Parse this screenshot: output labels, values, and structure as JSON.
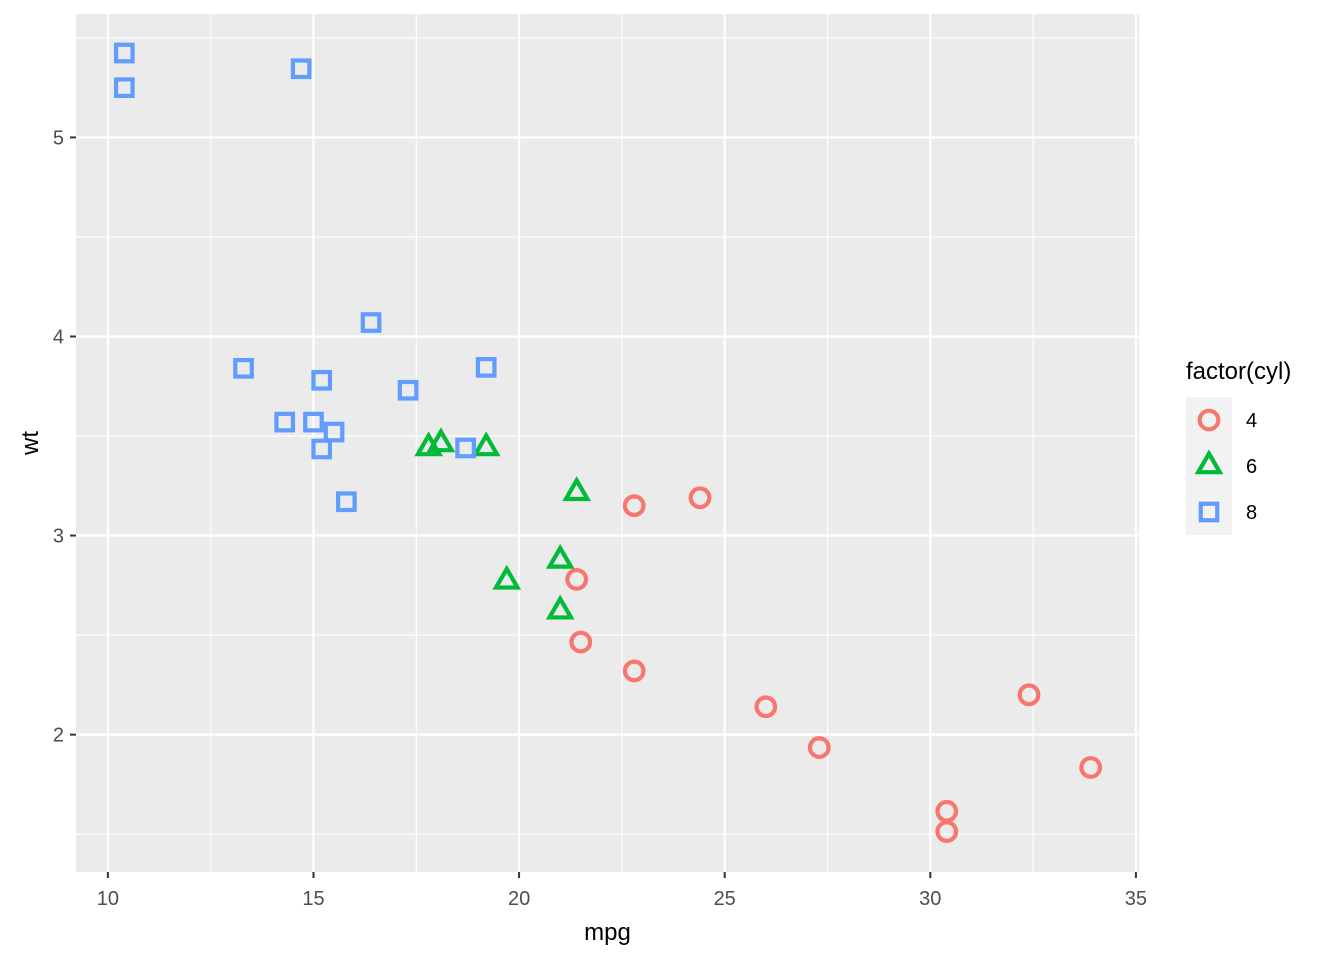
{
  "chart_data": {
    "type": "scatter",
    "title": "",
    "xlabel": "mpg",
    "ylabel": "wt",
    "xlim": [
      9.225,
      35.075
    ],
    "ylim": [
      1.31,
      5.62
    ],
    "x_ticks": [
      10,
      15,
      20,
      25,
      30,
      35
    ],
    "y_ticks": [
      2,
      3,
      4,
      5
    ],
    "x_tick_labels": [
      "10",
      "15",
      "20",
      "25",
      "30",
      "35"
    ],
    "y_tick_labels": [
      "2",
      "3",
      "4",
      "5"
    ],
    "grid": true,
    "legend": {
      "title": "factor(cyl)",
      "position": "right"
    },
    "series": [
      {
        "name": "4",
        "shape": "circle",
        "color": "#F8766D",
        "points": [
          {
            "x": 22.8,
            "y": 2.32
          },
          {
            "x": 24.4,
            "y": 3.19
          },
          {
            "x": 22.8,
            "y": 3.15
          },
          {
            "x": 32.4,
            "y": 2.2
          },
          {
            "x": 30.4,
            "y": 1.615
          },
          {
            "x": 33.9,
            "y": 1.835
          },
          {
            "x": 21.5,
            "y": 2.465
          },
          {
            "x": 27.3,
            "y": 1.935
          },
          {
            "x": 26.0,
            "y": 2.14
          },
          {
            "x": 30.4,
            "y": 1.513
          },
          {
            "x": 21.4,
            "y": 2.78
          }
        ]
      },
      {
        "name": "6",
        "shape": "triangle",
        "color": "#00BA38",
        "points": [
          {
            "x": 21.0,
            "y": 2.62
          },
          {
            "x": 21.0,
            "y": 2.875
          },
          {
            "x": 21.4,
            "y": 3.215
          },
          {
            "x": 18.1,
            "y": 3.46
          },
          {
            "x": 19.2,
            "y": 3.44
          },
          {
            "x": 17.8,
            "y": 3.44
          },
          {
            "x": 19.7,
            "y": 2.77
          }
        ]
      },
      {
        "name": "8",
        "shape": "square",
        "color": "#619CFF",
        "points": [
          {
            "x": 18.7,
            "y": 3.44
          },
          {
            "x": 14.3,
            "y": 3.57
          },
          {
            "x": 16.4,
            "y": 4.07
          },
          {
            "x": 17.3,
            "y": 3.73
          },
          {
            "x": 15.2,
            "y": 3.78
          },
          {
            "x": 10.4,
            "y": 5.25
          },
          {
            "x": 10.4,
            "y": 5.424
          },
          {
            "x": 14.7,
            "y": 5.345
          },
          {
            "x": 15.5,
            "y": 3.52
          },
          {
            "x": 15.2,
            "y": 3.435
          },
          {
            "x": 13.3,
            "y": 3.84
          },
          {
            "x": 19.2,
            "y": 3.845
          },
          {
            "x": 15.8,
            "y": 3.17
          },
          {
            "x": 15.0,
            "y": 3.57
          }
        ]
      }
    ]
  }
}
